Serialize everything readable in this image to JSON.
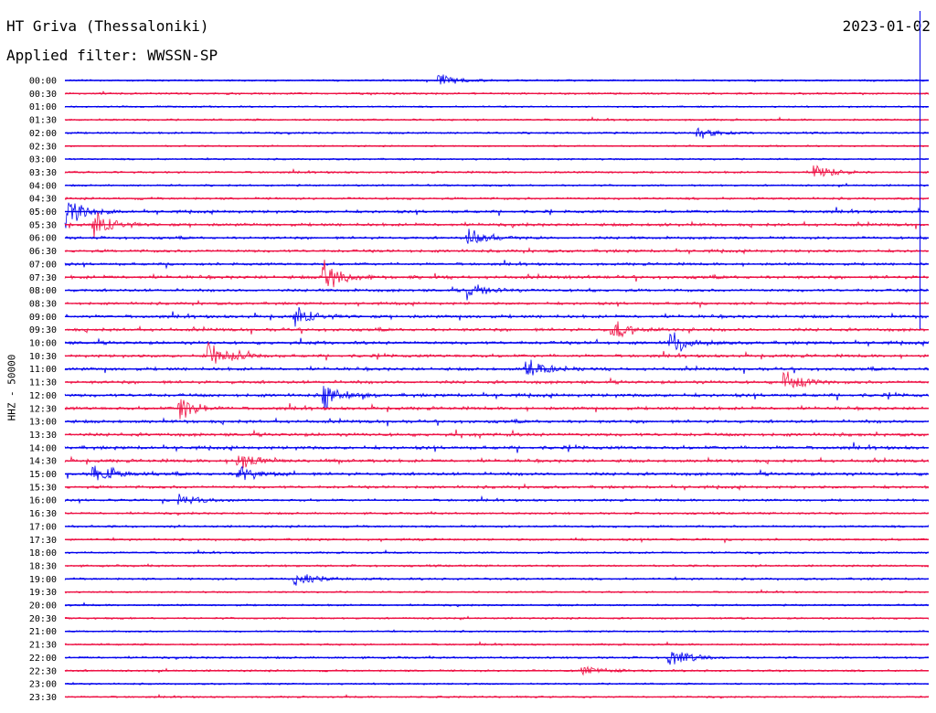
{
  "header": {
    "station": "HT Griva (Thessaloniki)",
    "filter": "Applied filter: WWSSN-SP",
    "date": "2023-01-02"
  },
  "channel_label": "HHZ - 50000",
  "colors": {
    "trace_a": "#0000ee",
    "trace_b": "#ee1144"
  },
  "chart_data": {
    "type": "line",
    "title": "HT Griva (Thessaloniki)",
    "subtitle": "Applied filter: WWSSN-SP",
    "ylabel": "HHZ - 50000",
    "xlabel": "",
    "date": "2023-01-02",
    "grid": false,
    "series_colors_alternate": [
      "blue",
      "red"
    ],
    "rows": [
      "00:00",
      "00:30",
      "01:00",
      "01:30",
      "02:00",
      "02:30",
      "03:00",
      "03:30",
      "04:00",
      "04:30",
      "05:00",
      "05:30",
      "06:00",
      "06:30",
      "07:00",
      "07:30",
      "08:00",
      "08:30",
      "09:00",
      "09:30",
      "10:00",
      "10:30",
      "11:00",
      "11:30",
      "12:00",
      "12:30",
      "13:00",
      "13:30",
      "14:00",
      "14:30",
      "15:00",
      "15:30",
      "16:00",
      "16:30",
      "17:00",
      "17:30",
      "18:00",
      "18:30",
      "19:00",
      "19:30",
      "20:00",
      "20:30",
      "21:00",
      "21:30",
      "22:00",
      "22:30",
      "23:00",
      "23:30"
    ],
    "activity_level": [
      0.25,
      0.3,
      0.2,
      0.3,
      0.3,
      0.2,
      0.25,
      0.35,
      0.3,
      0.45,
      0.6,
      0.65,
      0.55,
      0.6,
      0.55,
      0.75,
      0.6,
      0.55,
      0.7,
      0.7,
      0.7,
      0.65,
      0.7,
      0.7,
      0.75,
      0.7,
      0.7,
      0.75,
      0.75,
      0.7,
      0.7,
      0.6,
      0.45,
      0.35,
      0.4,
      0.4,
      0.3,
      0.35,
      0.4,
      0.25,
      0.3,
      0.3,
      0.25,
      0.3,
      0.35,
      0.35,
      0.25,
      0.25
    ],
    "events": [
      {
        "row": "00:00",
        "minute": 13,
        "amp": 0.5
      },
      {
        "row": "02:00",
        "minute": 22,
        "amp": 0.5
      },
      {
        "row": "03:30",
        "minute": 26,
        "amp": 0.6
      },
      {
        "row": "05:00",
        "minute": 0,
        "amp": 1.4
      },
      {
        "row": "05:30",
        "minute": 1,
        "amp": 1.0
      },
      {
        "row": "06:00",
        "minute": 14,
        "amp": 0.8
      },
      {
        "row": "07:30",
        "minute": 9,
        "amp": 1.2
      },
      {
        "row": "08:00",
        "minute": 14,
        "amp": 0.7
      },
      {
        "row": "09:00",
        "minute": 8,
        "amp": 0.7
      },
      {
        "row": "09:30",
        "minute": 19,
        "amp": 0.9
      },
      {
        "row": "10:00",
        "minute": 21,
        "amp": 1.0
      },
      {
        "row": "10:30",
        "minute": 5,
        "amp": 1.1
      },
      {
        "row": "11:00",
        "minute": 16,
        "amp": 0.9
      },
      {
        "row": "11:30",
        "minute": 25,
        "amp": 0.8
      },
      {
        "row": "12:00",
        "minute": 9,
        "amp": 1.1
      },
      {
        "row": "12:30",
        "minute": 4,
        "amp": 1.0
      },
      {
        "row": "14:30",
        "minute": 6,
        "amp": 0.7
      },
      {
        "row": "15:00",
        "minute": 1,
        "amp": 0.8
      },
      {
        "row": "15:00",
        "minute": 6,
        "amp": 0.8
      },
      {
        "row": "16:00",
        "minute": 4,
        "amp": 0.5
      },
      {
        "row": "19:00",
        "minute": 8,
        "amp": 0.6
      },
      {
        "row": "22:00",
        "minute": 21,
        "amp": 0.8
      },
      {
        "row": "22:30",
        "minute": 18,
        "amp": 0.4
      }
    ],
    "time_marker_minute": 29.7
  }
}
